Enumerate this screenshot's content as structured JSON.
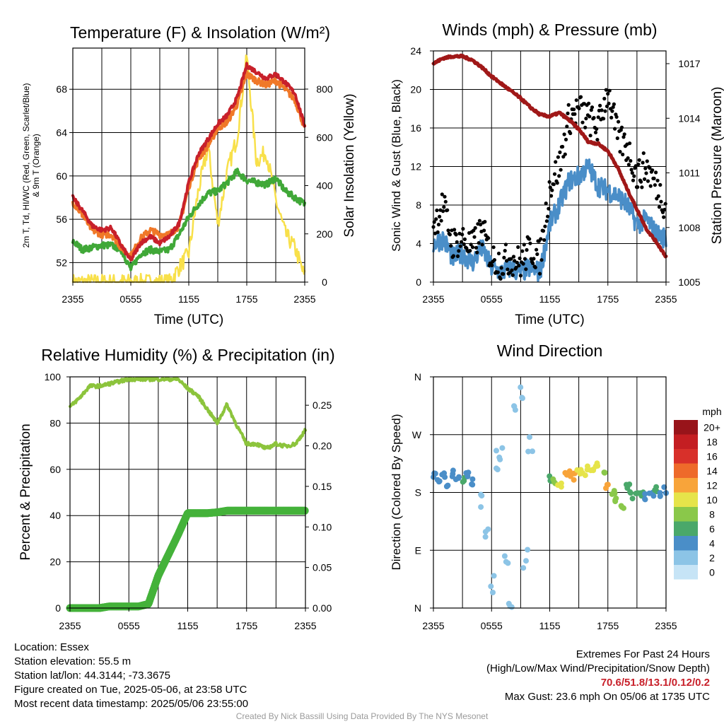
{
  "panels": {
    "temp": {
      "title": "Temperature (F) & Insolation (W/m²)",
      "ylabel_lines": [
        "2m T, Td, HI/WC (Red, Green, Scarlet/Blue)",
        "& 9m T (Orange)"
      ],
      "y2label": "Solar Insolation (Yellow)",
      "xlabel": "Time (UTC)",
      "xticks": [
        "2355",
        "0555",
        "1155",
        "1755",
        "2355"
      ],
      "yticks": [
        "52",
        "56",
        "60",
        "64",
        "68"
      ],
      "y2ticks": [
        "0",
        "200",
        "400",
        "600",
        "800"
      ]
    },
    "wind": {
      "title": "Winds (mph) & Pressure (mb)",
      "ylabel": "Sonic Wind & Gust (Blue, Black)",
      "y2label": "Station Pressure (Maroon)",
      "xlabel": "Time (UTC)",
      "xticks": [
        "2355",
        "0555",
        "1155",
        "1755",
        "2355"
      ],
      "yticks": [
        "0",
        "4",
        "8",
        "12",
        "16",
        "20",
        "24"
      ],
      "y2ticks": [
        "1005",
        "1008",
        "1011",
        "1014",
        "1017"
      ]
    },
    "rh": {
      "title": "Relative Humidity (%) & Precipitation (in)",
      "ylabel": "Percent & Precipitation",
      "xticks": [
        "2355",
        "0555",
        "1155",
        "1755",
        "2355"
      ],
      "yticks": [
        "0",
        "20",
        "40",
        "60",
        "80",
        "100"
      ],
      "y2ticks": [
        "0.00",
        "0.05",
        "0.10",
        "0.15",
        "0.20",
        "0.25"
      ]
    },
    "wdir": {
      "title": "Wind Direction",
      "ylabel": "Direction (Colored By Speed)",
      "xticks": [
        "2355",
        "0555",
        "1155",
        "1755",
        "2355"
      ],
      "yticks": [
        "N",
        "E",
        "S",
        "W",
        "N"
      ],
      "legend_unit": "mph",
      "legend_labels": [
        "0",
        "2",
        "4",
        "6",
        "8",
        "10",
        "12",
        "14",
        "16",
        "18",
        "20+"
      ],
      "legend_colors": [
        "#c6e4f6",
        "#8cc4e6",
        "#4a8ec8",
        "#4aa86a",
        "#8ac84a",
        "#e6e44a",
        "#f8a43a",
        "#ee6a2a",
        "#d8302a",
        "#c41e22",
        "#98141a"
      ]
    }
  },
  "station": {
    "location": "Location: Essex",
    "elevation": "Station elevation: 55.5 m",
    "latlon": "Station lat/lon: 44.3144; -73.3675",
    "created": "Figure created on Tue, 2025-05-06, at 23:58 UTC",
    "recent": "Most recent data timestamp: 2025/05/06 23:55:00"
  },
  "extremes": {
    "title": "Extremes For Past 24 Hours",
    "subtitle": "(High/Low/Max Wind/Precipitation/Snow Depth)",
    "values": "70.6/51.8/13.1/0.12/0.2",
    "gust": "Max Gust: 23.6 mph On 05/06 at 1735 UTC"
  },
  "credit": "Created By Nick Bassill Using Data Provided By The NYS Mesonet",
  "colors": {
    "temp": "#c8202a",
    "heat_index": "#d62020",
    "temp_9m": "#f07828",
    "dewpoint": "#40a838",
    "insolation": "#f8e04a",
    "wind": "#4a8ec8",
    "gust": "#000000",
    "pressure": "#a01818",
    "rh": "#8cc43c",
    "precip": "#44b23a"
  },
  "chart_data": [
    {
      "type": "line",
      "title": "Temperature (F) & Insolation (W/m²)",
      "xlabel": "Time (UTC)",
      "ylabel": "2m T, Td, HI/WC (Red, Green, Scarlet/Blue) & 9m T (Orange)",
      "y2label": "Solar Insolation (Yellow)",
      "x": [
        0,
        1,
        2,
        3,
        4,
        5,
        6,
        7,
        8,
        9,
        10,
        11,
        12,
        13,
        14,
        15,
        16,
        17,
        18,
        19,
        20,
        21,
        22,
        23,
        24
      ],
      "xticks": {
        "0": "2355",
        "6": "0555",
        "12": "1155",
        "18": "1755",
        "24": "2355"
      },
      "ylim": [
        50.2,
        71.8
      ],
      "y2lim": [
        0,
        970
      ],
      "series": [
        {
          "name": "2m T",
          "axis": "left",
          "values": [
            58.0,
            56.8,
            55.4,
            55.0,
            55.2,
            53.6,
            52.2,
            53.8,
            54.4,
            53.8,
            54.4,
            55.6,
            59.4,
            62.0,
            63.4,
            64.8,
            65.6,
            67.2,
            70.2,
            69.6,
            69.0,
            69.4,
            68.6,
            67.6,
            64.6
          ]
        },
        {
          "name": "9m T",
          "axis": "left",
          "values": [
            57.6,
            56.4,
            55.0,
            54.6,
            54.6,
            53.4,
            52.6,
            54.2,
            55.0,
            54.6,
            54.6,
            55.4,
            59.0,
            61.6,
            62.8,
            64.4,
            65.0,
            66.6,
            69.4,
            68.8,
            68.4,
            68.8,
            68.0,
            67.0,
            64.4
          ]
        },
        {
          "name": "Td",
          "axis": "left",
          "values": [
            54.0,
            53.2,
            53.4,
            53.6,
            53.6,
            53.2,
            51.4,
            52.8,
            53.2,
            53.0,
            53.2,
            54.6,
            56.2,
            57.4,
            58.4,
            58.6,
            59.4,
            60.4,
            59.6,
            59.4,
            59.2,
            59.8,
            58.6,
            58.0,
            57.4
          ]
        },
        {
          "name": "Solar Insolation",
          "axis": "right",
          "values": [
            0,
            0,
            0,
            0,
            0,
            0,
            0,
            0,
            0,
            0,
            0,
            60,
            120,
            380,
            560,
            240,
            460,
            600,
            940,
            500,
            540,
            340,
            200,
            140,
            20
          ]
        }
      ]
    },
    {
      "type": "line",
      "title": "Winds (mph) & Pressure (mb)",
      "xlabel": "Time (UTC)",
      "ylabel": "Sonic Wind & Gust (Blue, Black)",
      "y2label": "Station Pressure (Maroon)",
      "x": [
        0,
        1,
        2,
        3,
        4,
        5,
        6,
        7,
        8,
        9,
        10,
        11,
        12,
        13,
        14,
        15,
        16,
        17,
        18,
        19,
        20,
        21,
        22,
        23,
        24
      ],
      "xticks": {
        "0": "2355",
        "6": "0555",
        "12": "1155",
        "18": "1755",
        "24": "2355"
      },
      "ylim": [
        0,
        24
      ],
      "y2lim": [
        1005,
        1017.7
      ],
      "series": [
        {
          "name": "Sonic Wind",
          "axis": "left",
          "values": [
            4.0,
            4.5,
            2.5,
            3.0,
            2.0,
            3.5,
            1.5,
            1.0,
            1.5,
            1.0,
            1.5,
            1.0,
            6.0,
            8.0,
            10.5,
            11.0,
            12.0,
            10.0,
            9.5,
            9.0,
            8.0,
            6.0,
            6.5,
            5.0,
            4.5
          ]
        },
        {
          "name": "Gust",
          "axis": "left",
          "values": [
            6.0,
            8.0,
            4.0,
            4.5,
            3.5,
            5.5,
            2.5,
            2.0,
            2.5,
            2.0,
            3.5,
            2.5,
            10.0,
            12.0,
            17.0,
            18.0,
            17.0,
            16.0,
            20.0,
            15.0,
            14.0,
            11.0,
            12.0,
            10.0,
            8.0
          ]
        },
        {
          "name": "Station Pressure",
          "axis": "right",
          "values": [
            1017.0,
            1017.3,
            1017.4,
            1017.4,
            1017.2,
            1016.8,
            1016.3,
            1015.9,
            1015.5,
            1015.1,
            1014.6,
            1014.2,
            1014.1,
            1014.3,
            1013.9,
            1013.4,
            1012.7,
            1012.6,
            1012.2,
            1011.3,
            1010.1,
            1009.0,
            1007.9,
            1007.2,
            1006.4
          ]
        }
      ]
    },
    {
      "type": "line",
      "title": "Relative Humidity (%) & Precipitation (in)",
      "ylabel": "Percent & Precipitation",
      "x": [
        0,
        1,
        2,
        3,
        4,
        5,
        6,
        7,
        8,
        9,
        10,
        11,
        12,
        13,
        14,
        15,
        16,
        17,
        18,
        19,
        20,
        21,
        22,
        23,
        24
      ],
      "xticks": {
        "0": "2355",
        "6": "0555",
        "12": "1155",
        "18": "1755",
        "24": "2355"
      },
      "ylim": [
        0,
        100
      ],
      "y2lim": [
        0,
        0.285
      ],
      "series": [
        {
          "name": "Relative Humidity",
          "axis": "left",
          "values": [
            87,
            91,
            96,
            96,
            97,
            98,
            99,
            99,
            99,
            99,
            99,
            99,
            95,
            92,
            86,
            80,
            88,
            79,
            71,
            71,
            69,
            71,
            70,
            71,
            77
          ]
        },
        {
          "name": "Precipitation",
          "axis": "right",
          "values": [
            0.0,
            0.0,
            0.0,
            0.0,
            0.002,
            0.002,
            0.002,
            0.002,
            0.005,
            0.04,
            0.065,
            0.09,
            0.117,
            0.117,
            0.117,
            0.118,
            0.12,
            0.12,
            0.12,
            0.12,
            0.12,
            0.12,
            0.12,
            0.12,
            0.12
          ]
        }
      ]
    },
    {
      "type": "scatter",
      "title": "Wind Direction",
      "ylabel": "Direction (Colored By Speed)",
      "x": [
        0,
        0.5,
        1,
        1.5,
        2,
        2.5,
        3,
        3.5,
        4,
        5,
        5.5,
        6,
        6.5,
        7,
        7.5,
        8,
        8.5,
        9,
        9.5,
        10,
        12,
        12.5,
        13,
        13.5,
        14,
        14.5,
        15,
        15.5,
        16,
        16.5,
        17,
        17.5,
        18,
        18.5,
        19,
        19.5,
        20,
        20.5,
        21,
        21.5,
        22,
        22.5,
        23,
        23.5,
        24
      ],
      "xticks": {
        "0": "2355",
        "6": "0555",
        "12": "1155",
        "18": "1755",
        "24": "2355"
      },
      "y": [
        205,
        200,
        205,
        195,
        210,
        200,
        200,
        210,
        195,
        160,
        110,
        40,
        230,
        250,
        90,
        20,
        300,
        345,
        80,
        260,
        200,
        195,
        190,
        210,
        210,
        205,
        215,
        210,
        220,
        215,
        220,
        210,
        190,
        180,
        170,
        155,
        190,
        175,
        180,
        175,
        175,
        180,
        185,
        180,
        185
      ],
      "speed": [
        4,
        4,
        4,
        3,
        4,
        4,
        5,
        4,
        3,
        2,
        1,
        1,
        2,
        2,
        1,
        1,
        1,
        1,
        1,
        2,
        5,
        7,
        9,
        12,
        12,
        11,
        10,
        10,
        9,
        10,
        9,
        8,
        12,
        8,
        8,
        7,
        6,
        6,
        5,
        5,
        4,
        4,
        5,
        4,
        4
      ],
      "ylim": [
        0,
        360
      ],
      "yticks": {
        "0": "N",
        "90": "E",
        "180": "S",
        "270": "W",
        "360": "N"
      }
    }
  ]
}
